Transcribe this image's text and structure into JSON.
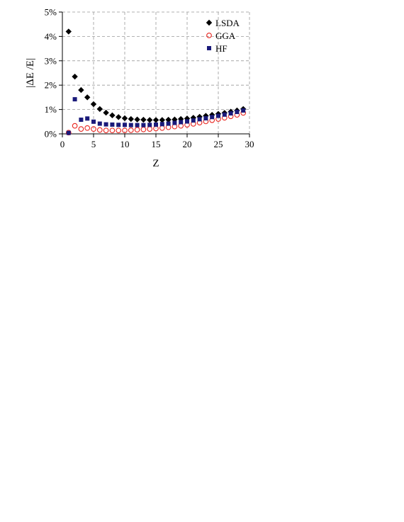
{
  "chart_data": {
    "type": "scatter",
    "xlabel": "Z",
    "ylabel": "|ΔE /E|",
    "xlim": [
      0,
      30
    ],
    "ylim": [
      0,
      5
    ],
    "x_ticks": [
      0,
      5,
      10,
      15,
      20,
      25,
      30
    ],
    "y_ticks": [
      0,
      1,
      2,
      3,
      4,
      5
    ],
    "y_tick_labels": [
      "0%",
      "1%",
      "2%",
      "3%",
      "4%",
      "5%"
    ],
    "y_unit": "%",
    "grid": true,
    "legend_position": "top-right",
    "series": [
      {
        "name": "LSDA",
        "marker": "diamond",
        "color": "#000000",
        "x": [
          1,
          2,
          3,
          4,
          5,
          6,
          7,
          8,
          9,
          10,
          11,
          12,
          13,
          14,
          15,
          16,
          17,
          18,
          19,
          20,
          21,
          22,
          23,
          24,
          25,
          26,
          27,
          28,
          29
        ],
        "y": [
          4.2,
          2.35,
          1.8,
          1.5,
          1.22,
          1.02,
          0.87,
          0.76,
          0.69,
          0.64,
          0.61,
          0.59,
          0.58,
          0.57,
          0.57,
          0.57,
          0.58,
          0.59,
          0.61,
          0.63,
          0.66,
          0.7,
          0.74,
          0.78,
          0.82,
          0.86,
          0.91,
          0.96,
          1.02
        ]
      },
      {
        "name": "GGA",
        "marker": "circle-open",
        "color": "#e8231d",
        "x": [
          1,
          2,
          3,
          4,
          5,
          6,
          7,
          8,
          9,
          10,
          11,
          12,
          13,
          14,
          15,
          16,
          17,
          18,
          19,
          20,
          21,
          22,
          23,
          24,
          25,
          26,
          27,
          28,
          29
        ],
        "y": [
          0.05,
          0.33,
          0.2,
          0.24,
          0.2,
          0.16,
          0.14,
          0.14,
          0.14,
          0.14,
          0.15,
          0.17,
          0.18,
          0.2,
          0.22,
          0.24,
          0.27,
          0.3,
          0.33,
          0.37,
          0.41,
          0.46,
          0.51,
          0.56,
          0.61,
          0.66,
          0.72,
          0.78,
          0.86
        ]
      },
      {
        "name": "HF",
        "marker": "square",
        "color": "#1a1a7a",
        "x": [
          1,
          2,
          3,
          4,
          5,
          6,
          7,
          8,
          9,
          10,
          11,
          12,
          13,
          14,
          15,
          16,
          17,
          18,
          19,
          20,
          21,
          22,
          23,
          24,
          25,
          26,
          27,
          28,
          29
        ],
        "y": [
          0.04,
          1.42,
          0.58,
          0.63,
          0.5,
          0.42,
          0.39,
          0.38,
          0.37,
          0.37,
          0.36,
          0.36,
          0.36,
          0.37,
          0.38,
          0.4,
          0.42,
          0.45,
          0.48,
          0.51,
          0.55,
          0.6,
          0.64,
          0.69,
          0.74,
          0.79,
          0.84,
          0.9,
          0.96
        ]
      }
    ]
  }
}
